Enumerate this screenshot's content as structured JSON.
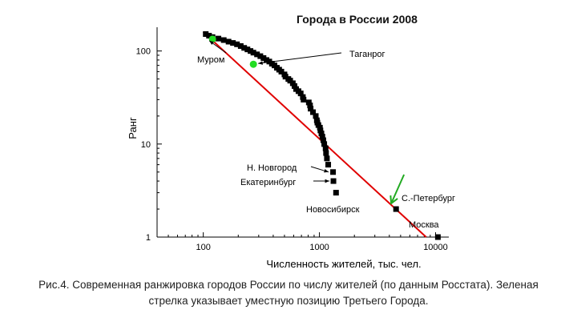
{
  "chart_data": {
    "type": "scatter",
    "title": "Города в России 2008",
    "xlabel": "Численность жителей, тыс. чел.",
    "ylabel": "Ранг",
    "x_scale": "log",
    "y_scale": "log",
    "xlim": [
      40,
      13000
    ],
    "ylim": [
      1,
      180
    ],
    "x_ticks": [
      100,
      1000,
      10000
    ],
    "y_ticks": [
      1,
      10,
      100
    ],
    "x_tick_labels": [
      "100",
      "1000",
      "10000"
    ],
    "y_tick_labels": [
      "1",
      "10",
      "100"
    ],
    "series": [
      {
        "color": "#000000",
        "marker": "square",
        "points": [
          [
            10470,
            1
          ],
          [
            4570,
            2
          ],
          [
            1390,
            3
          ],
          [
            1320,
            4
          ],
          [
            1310,
            5
          ],
          [
            1190,
            6
          ],
          [
            1160,
            7
          ],
          [
            1140,
            8
          ],
          [
            1130,
            9
          ],
          [
            1100,
            10
          ],
          [
            1080,
            11
          ],
          [
            1060,
            12
          ],
          [
            1040,
            13
          ],
          [
            1020,
            14
          ],
          [
            1010,
            15
          ],
          [
            980,
            16
          ],
          [
            960,
            17
          ],
          [
            950,
            18
          ],
          [
            930,
            20
          ],
          [
            880,
            22
          ],
          [
            840,
            24
          ],
          [
            830,
            26
          ],
          [
            810,
            28
          ],
          [
            730,
            30
          ],
          [
            720,
            32
          ],
          [
            690,
            35
          ],
          [
            660,
            37
          ],
          [
            630,
            39
          ],
          [
            610,
            42
          ],
          [
            590,
            45
          ],
          [
            560,
            48
          ],
          [
            540,
            50
          ],
          [
            510,
            53
          ],
          [
            500,
            56
          ],
          [
            470,
            60
          ],
          [
            450,
            63
          ],
          [
            430,
            66
          ],
          [
            410,
            70
          ],
          [
            390,
            73
          ],
          [
            370,
            77
          ],
          [
            350,
            80
          ],
          [
            330,
            84
          ],
          [
            310,
            88
          ],
          [
            290,
            92
          ],
          [
            270,
            96
          ],
          [
            255,
            100
          ],
          [
            240,
            104
          ],
          [
            225,
            108
          ],
          [
            210,
            113
          ],
          [
            195,
            118
          ],
          [
            180,
            122
          ],
          [
            165,
            126
          ],
          [
            150,
            131
          ],
          [
            135,
            136
          ],
          [
            120,
            141
          ],
          [
            112,
            146
          ],
          [
            105,
            152
          ]
        ]
      },
      {
        "color": "#e00000",
        "type": "line",
        "points": [
          [
            100,
            160
          ],
          [
            8300,
            1
          ]
        ]
      },
      {
        "color": "#22dd22",
        "marker": "circle",
        "points": [
          [
            120,
            134
          ],
          [
            270,
            72
          ]
        ]
      }
    ],
    "annotations": [
      {
        "text": "Муром",
        "x": 120,
        "y": 134
      },
      {
        "text": "Таганрог",
        "x": 270,
        "y": 72
      },
      {
        "text": "Н. Новгород",
        "x": 1300,
        "y": 5
      },
      {
        "text": "Екатеринбург",
        "x": 1320,
        "y": 4
      },
      {
        "text": "Новосибирск",
        "x": 1390,
        "y": 3
      },
      {
        "text": "С.-Петербург",
        "x": 4570,
        "y": 2
      },
      {
        "text": "Москва",
        "x": 10470,
        "y": 1
      }
    ],
    "green_arrow": {
      "color": "#22aa22",
      "points_to": [
        4150,
        2.3
      ]
    }
  },
  "caption": "Рис.4. Современная ранжировка городов России по числу жителей (по данным Росстата). Зеленая стрелка указывает уместную позицию Третьего Города."
}
